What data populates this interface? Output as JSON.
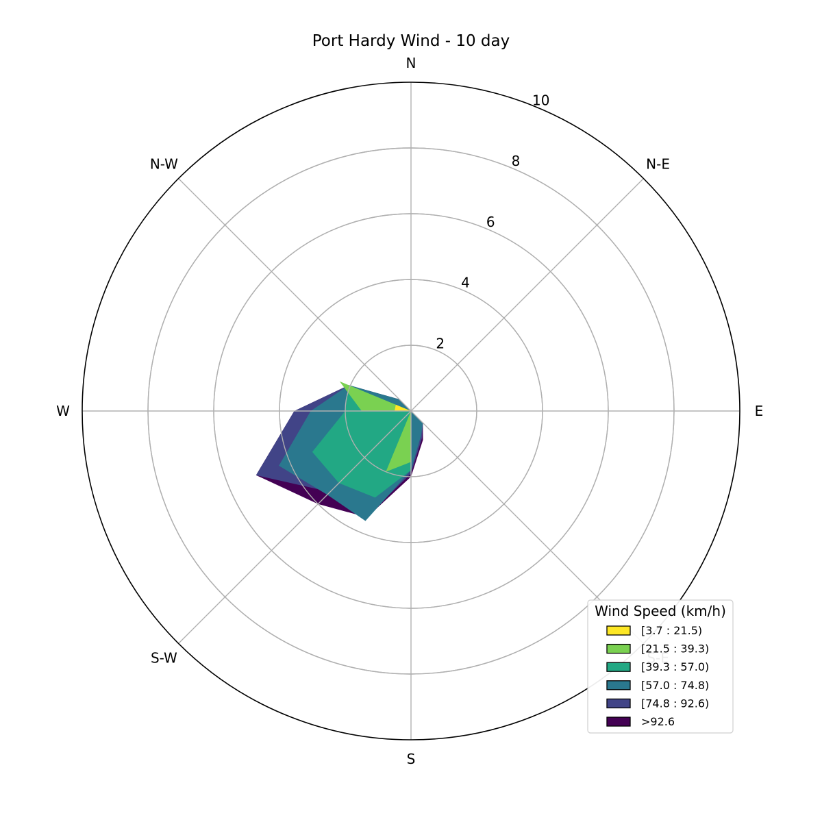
{
  "chart_data": {
    "type": "area",
    "subtype": "windrose",
    "title": "Port Hardy Wind - 10 day",
    "directions": [
      "N",
      "N-E",
      "E",
      "S-E",
      "S",
      "S-W",
      "W",
      "N-W"
    ],
    "sector_angles_deg": [
      0,
      22.5,
      45,
      67.5,
      90,
      112.5,
      135,
      157.5,
      180,
      202.5,
      225,
      247.5,
      270,
      292.5,
      315,
      337.5
    ],
    "radial_ticks": [
      2,
      4,
      6,
      8,
      10
    ],
    "rlim": [
      0,
      10
    ],
    "grid": true,
    "legend_title": "Wind Speed (km/h)",
    "legend_position": "bottom-right",
    "colors": [
      "#fde725",
      "#7ad151",
      "#22a884",
      "#2a788e",
      "#414487",
      "#440154"
    ],
    "series": [
      {
        "name": "[3.7 : 21.5)",
        "color": "#fde725",
        "values": [
          0,
          0,
          0,
          0,
          0,
          0,
          0,
          0,
          0,
          0,
          0,
          0,
          0,
          0,
          0,
          0
        ]
      },
      {
        "name": "[21.5 : 39.3)",
        "color": "#7ad151",
        "values": [
          0,
          0,
          0,
          0,
          0,
          0,
          0,
          0,
          0,
          0,
          0,
          0,
          0,
          0,
          0,
          0
        ]
      },
      {
        "name": "[39.3 : 57.0)",
        "color": "#22a884",
        "values": [
          0,
          0,
          0,
          0,
          0,
          0,
          0,
          0,
          0,
          0,
          0,
          0,
          0,
          0,
          0,
          0
        ]
      },
      {
        "name": "[57.0 : 74.8)",
        "color": "#2a788e",
        "values": [
          0,
          0,
          0,
          0,
          0,
          0,
          0,
          0,
          0,
          0,
          0,
          0,
          0,
          0,
          0,
          0
        ]
      },
      {
        "name": "[74.8 : 92.6)",
        "color": "#414487",
        "values": [
          0,
          0,
          0,
          0,
          0,
          0,
          0,
          0,
          0,
          0,
          0,
          0,
          0,
          0,
          0,
          0
        ]
      },
      {
        "name": ">92.6",
        "color": "#440154",
        "values": [
          0,
          0,
          0,
          0,
          0,
          0,
          0,
          0,
          0,
          0,
          0,
          0,
          0,
          0,
          0,
          0
        ]
      }
    ],
    "cumulative": [
      [
        0,
        0,
        0,
        0,
        0,
        0,
        0,
        0,
        0,
        0,
        0,
        0,
        0.5,
        0.5,
        0,
        0
      ],
      [
        0,
        0,
        0,
        0,
        0,
        0,
        0,
        0,
        1.55,
        2.0,
        0,
        0,
        1.5,
        2.35,
        0,
        0
      ],
      [
        0,
        0,
        0,
        0,
        0,
        0,
        0,
        0,
        1.8,
        2.85,
        3.1,
        3.25,
        2.0,
        2.05,
        0,
        0
      ],
      [
        0,
        0,
        0,
        0,
        0,
        0,
        0.51,
        0.8,
        1.8,
        3.62,
        3.6,
        4.35,
        3.05,
        2.05,
        0.5,
        0
      ],
      [
        0,
        0,
        0,
        0,
        0,
        0,
        0.51,
        0.88,
        1.9,
        3.45,
        3.48,
        5.1,
        3.55,
        2.05,
        0.5,
        0
      ],
      [
        0,
        0,
        0,
        0,
        0,
        0,
        0.51,
        0.95,
        2.0,
        3.5,
        4.0,
        5.1,
        3.55,
        2.05,
        0.5,
        0
      ]
    ]
  }
}
